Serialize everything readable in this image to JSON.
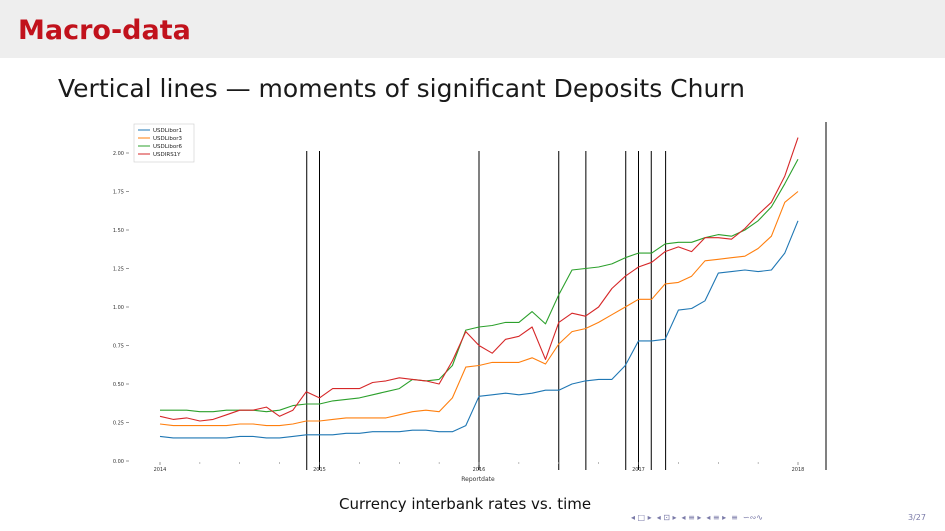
{
  "slide": {
    "frame_title": "Macro-data",
    "subtitle": "Vertical lines — moments of significant Deposits Churn",
    "caption": "Currency interbank rates vs. time",
    "page_number": "3/27"
  },
  "nav": {
    "icons": [
      "◂ □ ▸",
      "◂ ⊡ ▸",
      "◂ ≡ ▸",
      "◂ ≡ ▸",
      "≡",
      "∽∾∿"
    ]
  },
  "colors": {
    "USDLibor1": "#1f77b4",
    "USDLibor3": "#ff7f0e",
    "USDLibor6": "#2ca02c",
    "USDIRS1Y": "#d62728",
    "vlines": "#000000"
  },
  "chart_data": {
    "type": "line",
    "xlabel": "Reportdate",
    "ylabel": "",
    "xlim": [
      2014.0,
      2018.05
    ],
    "ylim": [
      0.0,
      2.2
    ],
    "x_ticks": [
      2014,
      2015,
      2016,
      2017,
      2018
    ],
    "x_tick_labels": [
      "2014",
      "2015",
      "2016",
      "2017",
      "2018"
    ],
    "y_ticks": [
      0.0,
      0.25,
      0.5,
      0.75,
      1.0,
      1.25,
      1.5,
      1.75,
      2.0
    ],
    "y_tick_labels": [
      "0.00",
      "0.25",
      "0.50",
      "0.75",
      "1.00",
      "1.25",
      "1.50",
      "1.75",
      "2.00"
    ],
    "legend": [
      "USDLibor1",
      "USDLibor3",
      "USDLibor6",
      "USDIRS1Y"
    ],
    "legend_position": "top-left",
    "grid": false,
    "vertical_lines": [
      2014.92,
      2015.0,
      2016.0,
      2016.5,
      2016.67,
      2016.92,
      2017.0,
      2017.08,
      2017.17,
      2018.2
    ],
    "x": [
      2014.0,
      2014.083,
      2014.167,
      2014.25,
      2014.333,
      2014.417,
      2014.5,
      2014.583,
      2014.667,
      2014.75,
      2014.833,
      2014.917,
      2015.0,
      2015.083,
      2015.167,
      2015.25,
      2015.333,
      2015.417,
      2015.5,
      2015.583,
      2015.667,
      2015.75,
      2015.833,
      2015.917,
      2016.0,
      2016.083,
      2016.167,
      2016.25,
      2016.333,
      2016.417,
      2016.5,
      2016.583,
      2016.667,
      2016.75,
      2016.833,
      2016.917,
      2017.0,
      2017.083,
      2017.167,
      2017.25,
      2017.333,
      2017.417,
      2017.5,
      2017.583,
      2017.667,
      2017.75,
      2017.833,
      2017.917,
      2018.0
    ],
    "series": [
      {
        "name": "USDLibor1",
        "values": [
          0.16,
          0.15,
          0.15,
          0.15,
          0.15,
          0.15,
          0.16,
          0.16,
          0.15,
          0.15,
          0.16,
          0.17,
          0.17,
          0.17,
          0.18,
          0.18,
          0.19,
          0.19,
          0.19,
          0.2,
          0.2,
          0.19,
          0.19,
          0.23,
          0.42,
          0.43,
          0.44,
          0.43,
          0.44,
          0.46,
          0.46,
          0.5,
          0.52,
          0.53,
          0.53,
          0.62,
          0.78,
          0.78,
          0.79,
          0.98,
          0.99,
          1.04,
          1.22,
          1.23,
          1.24,
          1.23,
          1.24,
          1.35,
          1.56
        ]
      },
      {
        "name": "USDLibor3",
        "values": [
          0.24,
          0.23,
          0.23,
          0.23,
          0.23,
          0.23,
          0.24,
          0.24,
          0.23,
          0.23,
          0.24,
          0.26,
          0.26,
          0.27,
          0.28,
          0.28,
          0.28,
          0.28,
          0.3,
          0.32,
          0.33,
          0.32,
          0.41,
          0.61,
          0.62,
          0.64,
          0.64,
          0.64,
          0.67,
          0.63,
          0.76,
          0.84,
          0.86,
          0.9,
          0.95,
          1.0,
          1.05,
          1.05,
          1.15,
          1.16,
          1.2,
          1.3,
          1.31,
          1.32,
          1.33,
          1.38,
          1.46,
          1.68,
          1.75
        ]
      },
      {
        "name": "USDLibor6",
        "values": [
          0.33,
          0.33,
          0.33,
          0.32,
          0.32,
          0.33,
          0.33,
          0.33,
          0.32,
          0.33,
          0.36,
          0.37,
          0.37,
          0.39,
          0.4,
          0.41,
          0.43,
          0.45,
          0.47,
          0.53,
          0.52,
          0.53,
          0.62,
          0.85,
          0.87,
          0.88,
          0.9,
          0.9,
          0.97,
          0.89,
          1.08,
          1.24,
          1.25,
          1.26,
          1.28,
          1.32,
          1.35,
          1.35,
          1.41,
          1.42,
          1.42,
          1.45,
          1.47,
          1.46,
          1.5,
          1.56,
          1.65,
          1.8,
          1.96
        ]
      },
      {
        "name": "USDIRS1Y",
        "values": [
          0.29,
          0.27,
          0.28,
          0.26,
          0.27,
          0.3,
          0.33,
          0.33,
          0.35,
          0.29,
          0.33,
          0.45,
          0.41,
          0.47,
          0.47,
          0.47,
          0.51,
          0.52,
          0.54,
          0.53,
          0.52,
          0.5,
          0.65,
          0.84,
          0.75,
          0.7,
          0.79,
          0.81,
          0.87,
          0.66,
          0.9,
          0.96,
          0.94,
          1.0,
          1.12,
          1.2,
          1.26,
          1.29,
          1.36,
          1.39,
          1.36,
          1.45,
          1.45,
          1.44,
          1.51,
          1.6,
          1.68,
          1.85,
          2.1
        ]
      }
    ]
  }
}
